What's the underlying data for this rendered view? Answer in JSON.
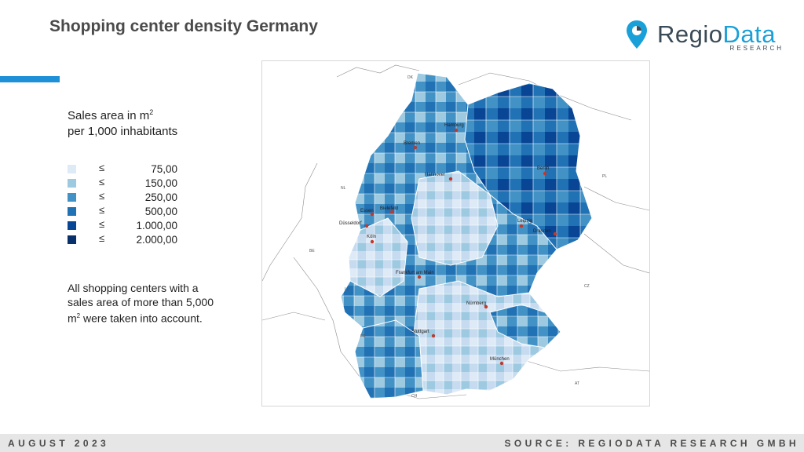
{
  "header": {
    "title": "Shopping center density Germany"
  },
  "logo": {
    "name_part1": "Regio",
    "name_part2": "Data",
    "subtitle": "RESEARCH",
    "colors": {
      "dark": "#3a4a56",
      "accent": "#1aa0d8"
    }
  },
  "legend": {
    "title_line1": "Sales area in m",
    "title_sup": "2",
    "title_line2": "per 1,000 inhabitants",
    "items": [
      {
        "symbol": "≤",
        "value": "75,00",
        "color": "#deebf7"
      },
      {
        "symbol": "≤",
        "value": "150,00",
        "color": "#9ecae1"
      },
      {
        "symbol": "≤",
        "value": "250,00",
        "color": "#4292c6"
      },
      {
        "symbol": "≤",
        "value": "500,00",
        "color": "#2171b5"
      },
      {
        "symbol": "≤",
        "value": "1.000,00",
        "color": "#084594"
      },
      {
        "symbol": "≤",
        "value": "2.000,00",
        "color": "#08306b"
      }
    ]
  },
  "note": {
    "part1": "All shopping centers with a sales area of more than 5,000 m",
    "sup": "2",
    "part2": " were taken into account."
  },
  "map": {
    "cities": [
      "Hamburg",
      "Bremen",
      "Hannover",
      "Berlin",
      "Essen",
      "Bielefeld",
      "Düsseldorf",
      "Köln",
      "Leipzig",
      "Dresden",
      "Frankfurt am Main",
      "Nürnberg",
      "Stuttgart",
      "München"
    ],
    "countries": [
      "DK",
      "NL",
      "BE",
      "LU",
      "FR",
      "CH",
      "AT",
      "CZ",
      "PL"
    ]
  },
  "footer": {
    "date": "AUGUST 2023",
    "source": "SOURCE: REGIODATA RESEARCH GMBH"
  }
}
